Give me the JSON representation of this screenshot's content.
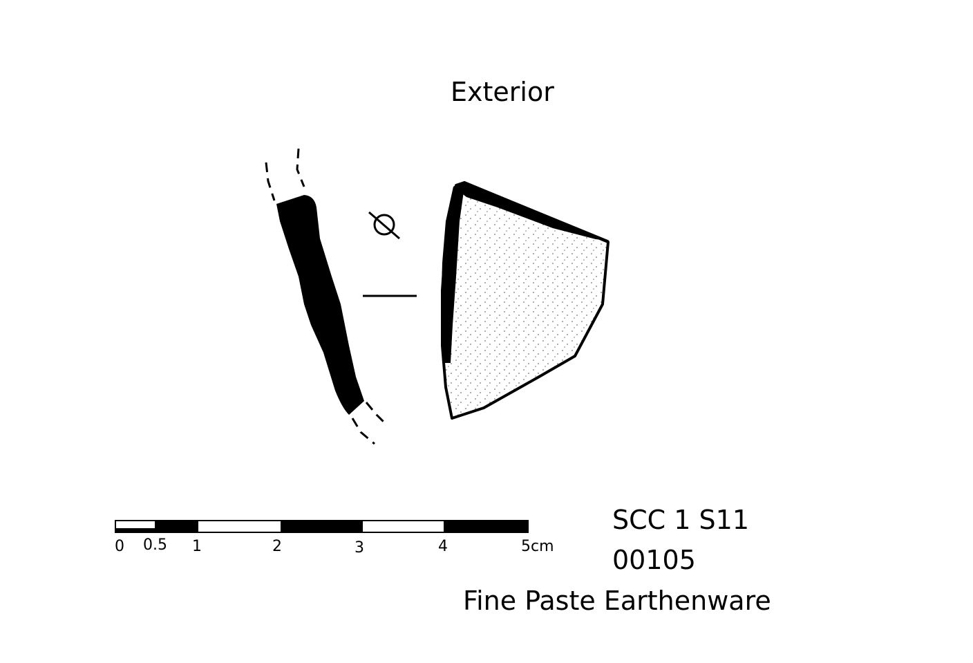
{
  "view_label": "Exterior",
  "diameter_symbol": "Ø",
  "scale_bar": {
    "ticks": [
      "0",
      "0.5",
      "1",
      "2",
      "3",
      "4",
      "5cm"
    ]
  },
  "catalog": {
    "site_code": "SCC 1 S11",
    "number": "00105",
    "ware": "Fine Paste Earthenware"
  }
}
